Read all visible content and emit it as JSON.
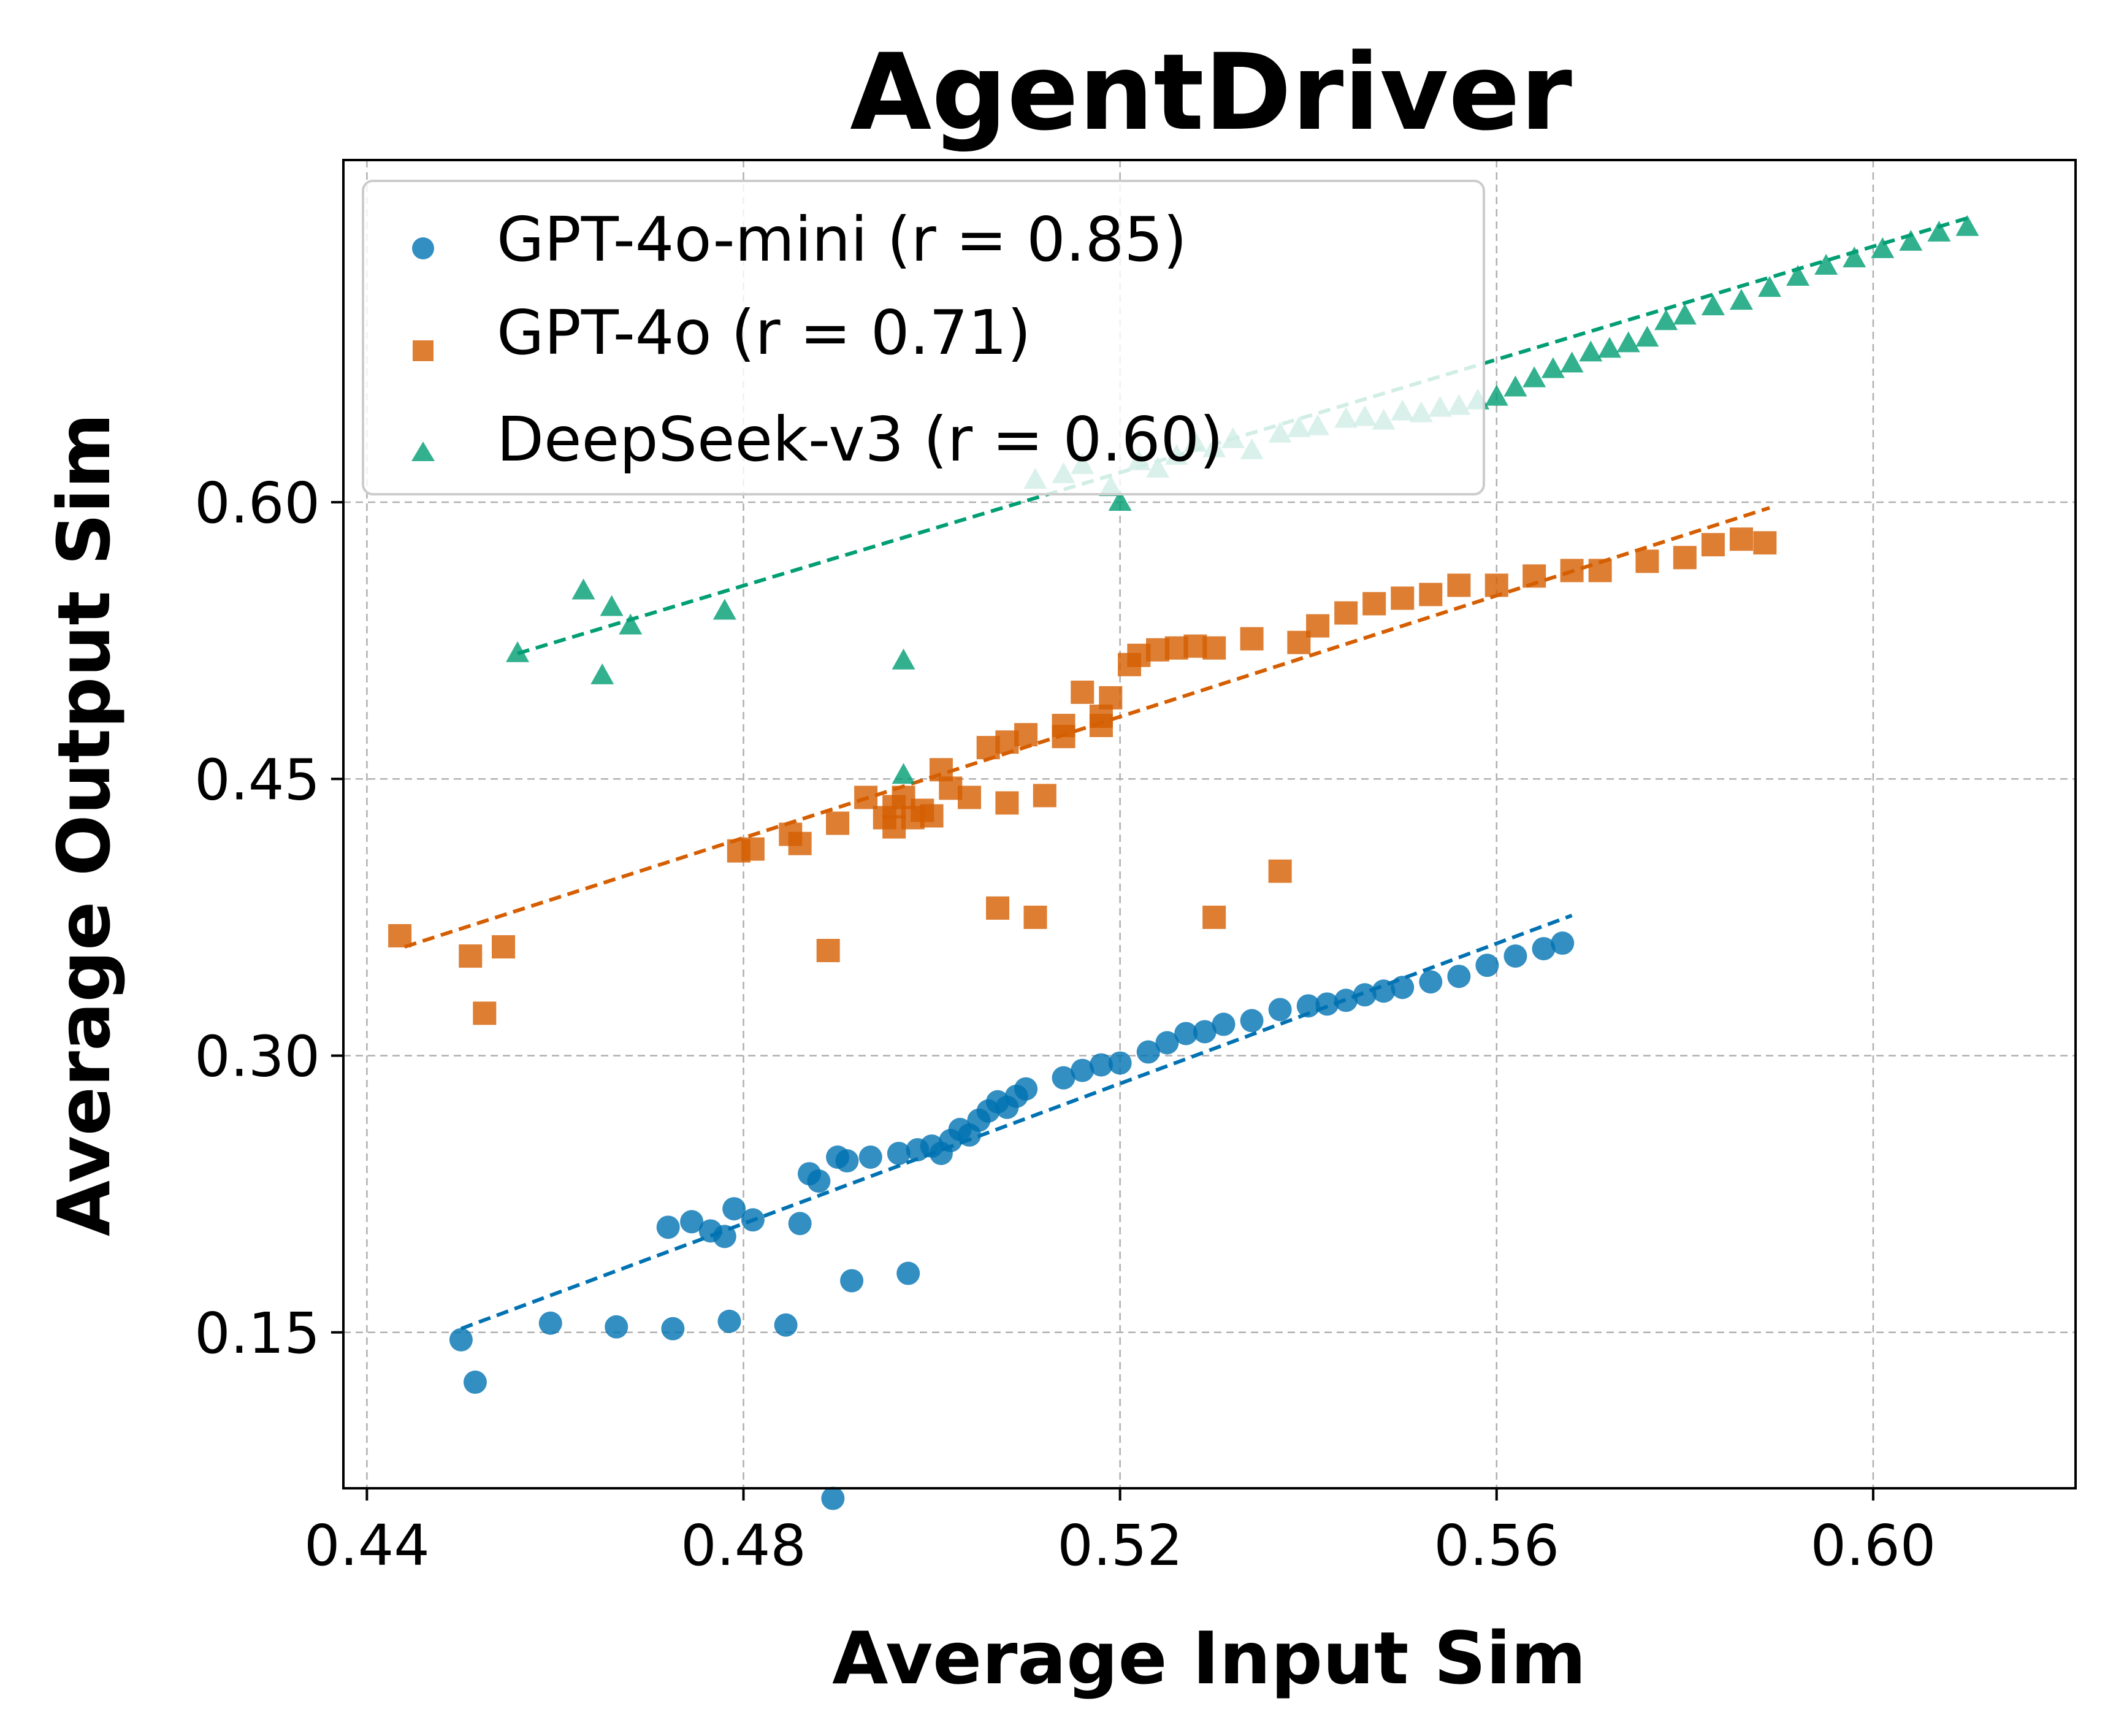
{
  "chart_data": {
    "type": "scatter",
    "title": "AgentDriver",
    "xlabel": "Average Input Sim",
    "ylabel": "Average Output Sim",
    "xlim": [
      0.4375,
      0.6215
    ],
    "ylim": [
      0.0655,
      0.7855
    ],
    "xticks": [
      0.44,
      0.48,
      0.52,
      0.56,
      0.6
    ],
    "xtick_labels": [
      "0.44",
      "0.48",
      "0.52",
      "0.56",
      "0.60"
    ],
    "yticks": [
      0.15,
      0.3,
      0.45,
      0.6
    ],
    "ytick_labels": [
      "0.15",
      "0.30",
      "0.45",
      "0.60"
    ],
    "grid": true,
    "legend_position": "upper-left",
    "series": [
      {
        "name": "GPT-4o-mini (r = 0.85)",
        "label": "GPT-4o-mini (r = 0.85)",
        "marker": "circle",
        "color": "#0072B2",
        "trend": {
          "x": [
            0.45,
            0.568
          ],
          "y": [
            0.152,
            0.376
          ]
        },
        "x": [
          0.45,
          0.4515,
          0.4595,
          0.4665,
          0.4725,
          0.4785,
          0.4845,
          0.4895,
          0.4915,
          0.4975,
          0.472,
          0.4745,
          0.4765,
          0.478,
          0.479,
          0.481,
          0.486,
          0.487,
          0.488,
          0.49,
          0.491,
          0.4935,
          0.4965,
          0.4985,
          0.5,
          0.501,
          0.502,
          0.503,
          0.504,
          0.505,
          0.506,
          0.507,
          0.508,
          0.509,
          0.51,
          0.514,
          0.516,
          0.518,
          0.52,
          0.523,
          0.525,
          0.527,
          0.529,
          0.531,
          0.534,
          0.537,
          0.54,
          0.542,
          0.544,
          0.546,
          0.548,
          0.55,
          0.553,
          0.556,
          0.559,
          0.562,
          0.565,
          0.567
        ],
        "y": [
          0.146,
          0.123,
          0.155,
          0.153,
          0.152,
          0.156,
          0.154,
          0.06,
          0.178,
          0.182,
          0.207,
          0.21,
          0.205,
          0.202,
          0.217,
          0.211,
          0.209,
          0.236,
          0.232,
          0.245,
          0.243,
          0.245,
          0.247,
          0.249,
          0.251,
          0.247,
          0.254,
          0.26,
          0.257,
          0.265,
          0.27,
          0.275,
          0.272,
          0.278,
          0.282,
          0.288,
          0.292,
          0.295,
          0.296,
          0.302,
          0.307,
          0.312,
          0.313,
          0.317,
          0.319,
          0.325,
          0.327,
          0.328,
          0.33,
          0.333,
          0.335,
          0.337,
          0.34,
          0.343,
          0.349,
          0.354,
          0.358,
          0.361
        ]
      },
      {
        "name": "GPT-4o (r = 0.71)",
        "label": "GPT-4o (r = 0.71)",
        "marker": "square",
        "color": "#D55E00",
        "trend": {
          "x": [
            0.444,
            0.589
          ],
          "y": [
            0.359,
            0.597
          ]
        },
        "x": [
          0.4435,
          0.451,
          0.4525,
          0.4545,
          0.4795,
          0.481,
          0.485,
          0.486,
          0.489,
          0.493,
          0.495,
          0.496,
          0.497,
          0.499,
          0.501,
          0.502,
          0.504,
          0.506,
          0.508,
          0.51,
          0.508,
          0.512,
          0.514,
          0.516,
          0.518,
          0.519,
          0.521,
          0.522,
          0.524,
          0.526,
          0.528,
          0.53,
          0.534,
          0.539,
          0.541,
          0.544,
          0.547,
          0.55,
          0.553,
          0.556,
          0.56,
          0.564,
          0.568,
          0.571,
          0.576,
          0.58,
          0.583,
          0.586,
          0.5885,
          0.53,
          0.537,
          0.507,
          0.511,
          0.49,
          0.496,
          0.498,
          0.5,
          0.514,
          0.518
        ],
        "y": [
          0.365,
          0.354,
          0.323,
          0.359,
          0.411,
          0.412,
          0.42,
          0.415,
          0.357,
          0.44,
          0.429,
          0.435,
          0.44,
          0.433,
          0.455,
          0.445,
          0.44,
          0.467,
          0.47,
          0.474,
          0.437,
          0.441,
          0.473,
          0.497,
          0.479,
          0.494,
          0.512,
          0.517,
          0.52,
          0.521,
          0.522,
          0.521,
          0.526,
          0.524,
          0.533,
          0.54,
          0.545,
          0.548,
          0.55,
          0.555,
          0.555,
          0.56,
          0.563,
          0.563,
          0.568,
          0.57,
          0.577,
          0.58,
          0.578,
          0.375,
          0.4,
          0.38,
          0.375,
          0.426,
          0.424,
          0.429,
          0.43,
          0.479,
          0.484
        ]
      },
      {
        "name": "DeepSeek-v3 (r = 0.60)",
        "label": "DeepSeek-v3 (r = 0.60)",
        "marker": "triangle",
        "color": "#009E73",
        "trend": {
          "x": [
            0.456,
            0.61
          ],
          "y": [
            0.518,
            0.754
          ]
        },
        "x": [
          0.456,
          0.463,
          0.465,
          0.466,
          0.468,
          0.478,
          0.497,
          0.497,
          0.511,
          0.514,
          0.516,
          0.519,
          0.52,
          0.522,
          0.524,
          0.526,
          0.528,
          0.53,
          0.532,
          0.534,
          0.537,
          0.539,
          0.541,
          0.544,
          0.546,
          0.548,
          0.55,
          0.552,
          0.554,
          0.556,
          0.558,
          0.56,
          0.562,
          0.564,
          0.566,
          0.568,
          0.57,
          0.572,
          0.574,
          0.576,
          0.578,
          0.58,
          0.583,
          0.586,
          0.589,
          0.592,
          0.595,
          0.598,
          0.601,
          0.604,
          0.607,
          0.61
        ],
        "y": [
          0.518,
          0.552,
          0.506,
          0.543,
          0.533,
          0.541,
          0.514,
          0.452,
          0.612,
          0.615,
          0.62,
          0.608,
          0.6,
          0.622,
          0.618,
          0.625,
          0.632,
          0.629,
          0.634,
          0.628,
          0.637,
          0.64,
          0.641,
          0.645,
          0.646,
          0.644,
          0.649,
          0.648,
          0.651,
          0.652,
          0.655,
          0.657,
          0.662,
          0.667,
          0.672,
          0.675,
          0.681,
          0.683,
          0.686,
          0.689,
          0.698,
          0.701,
          0.706,
          0.709,
          0.716,
          0.722,
          0.728,
          0.732,
          0.737,
          0.741,
          0.746,
          0.749
        ]
      }
    ]
  }
}
